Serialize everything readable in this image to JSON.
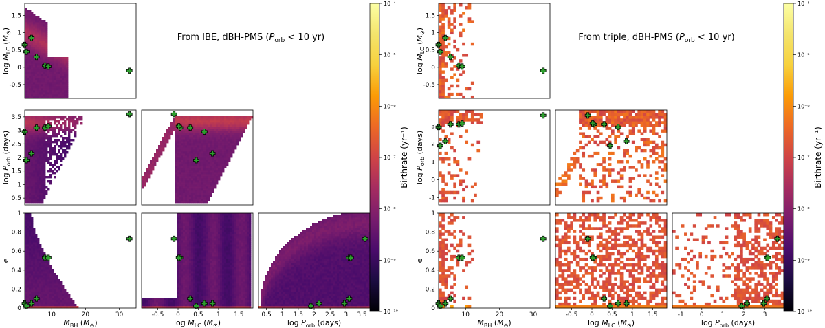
{
  "chart_data": {
    "type": "heatmap",
    "description_colors": {
      "marker": "#2e9e2e",
      "marker_edge": "#000000"
    },
    "colorbar": {
      "label": "Birthrate (yr⁻¹)",
      "scale": "log",
      "range": [
        1e-10,
        0.0001
      ],
      "ticks": [
        "10⁻¹⁰",
        "10⁻⁹",
        "10⁻⁸",
        "10⁻⁷",
        "10⁻⁶",
        "10⁻⁵",
        "10⁻⁴"
      ],
      "colormap": "inferno"
    },
    "axes": {
      "mbh": {
        "label": "M_BH (M⊙)",
        "range": [
          2,
          35
        ],
        "ticks": [
          10,
          20,
          30
        ]
      },
      "mlc": {
        "label": "log M_LC (M⊙)",
        "range": [
          -0.9,
          1.85
        ],
        "ticks": [
          -0.5,
          0.0,
          0.5,
          1.0,
          1.5
        ]
      },
      "porb_ibe": {
        "label": "log P_orb (days)",
        "range": [
          0.25,
          3.75
        ],
        "ticks": [
          0.5,
          1.0,
          1.5,
          2.0,
          2.5,
          3.0,
          3.5
        ]
      },
      "porb_triple": {
        "label": "log P_orb (days)",
        "range": [
          -1.4,
          3.9
        ],
        "ticks": [
          -1,
          0,
          1,
          2,
          3
        ]
      },
      "e": {
        "label": "e",
        "range": [
          0,
          1.0
        ],
        "ticks": [
          0.0,
          0.2,
          0.4,
          0.6,
          0.8,
          1.0
        ]
      }
    },
    "observed_systems": {
      "MBH": [
        2.0,
        2.5,
        4.0,
        5.5,
        8.0,
        9.0,
        33.0
      ],
      "logMLC": [
        0.65,
        0.45,
        0.85,
        0.3,
        0.05,
        0.02,
        -0.1
      ],
      "logPorb": [
        2.95,
        1.9,
        2.15,
        3.1,
        3.1,
        3.15,
        3.6
      ],
      "e": [
        0.05,
        0.02,
        0.05,
        0.1,
        0.53,
        0.53,
        0.73
      ]
    },
    "panels": [
      {
        "title": "From IBE, dBH-PMS (P_orb < 10 yr)",
        "porb_axis": "porb_ibe",
        "style": "smooth"
      },
      {
        "title": "From triple, dBH-PMS (P_orb < 10 yr)",
        "porb_axis": "porb_triple",
        "style": "sparse"
      }
    ]
  },
  "text": {
    "title_ibe_a": "From IBE, dBH-PMS (",
    "title_ibe_b": " < 10 yr)",
    "title_tri_a": "From triple, dBH-PMS (",
    "title_tri_b": " < 10 yr)"
  }
}
